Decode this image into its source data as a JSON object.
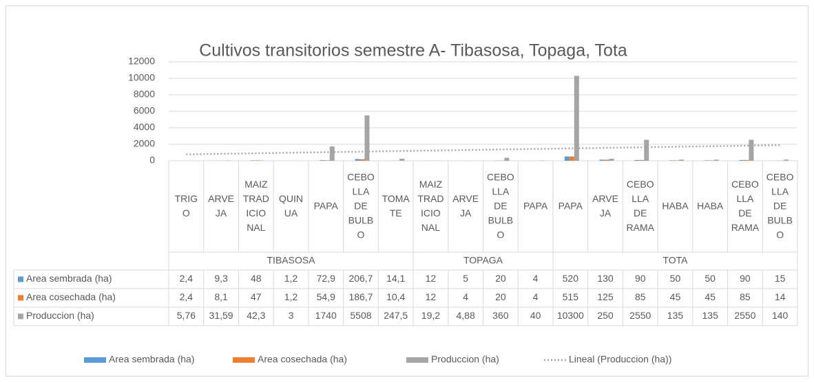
{
  "chart_data": {
    "type": "bar",
    "title": "Cultivos transitorios semestre A- Tibasosa, Topaga, Tota",
    "categories": [
      "TRIGO",
      "ARVEJA",
      "MAIZ TRADICIONAL",
      "QUINUA",
      "PAPA",
      "CEBOLLA DE BULBO",
      "TOMATE",
      "MAIZ TRADICIONAL",
      "ARVEJA",
      "CEBOLLA DE BULBO",
      "PAPA",
      "PAPA",
      "ARVEJA",
      "CEBOLLA DE RAMA",
      "HABA",
      "HABA",
      "CEBOLLA DE RAMA",
      "CEBOLLA DE BULBO"
    ],
    "groups": [
      {
        "name": "TIBASOSA",
        "count": 7
      },
      {
        "name": "TOPAGA",
        "count": 4
      },
      {
        "name": "TOTA",
        "count": 7
      }
    ],
    "series": [
      {
        "name": "Area sembrada (ha)",
        "color": "#5b9bd5",
        "values": [
          2.4,
          9.3,
          48,
          1.2,
          72.9,
          206.7,
          14.1,
          12,
          5,
          20,
          4,
          520,
          130,
          90,
          50,
          50,
          90,
          15
        ],
        "value_labels": [
          "2,4",
          "9,3",
          "48",
          "1,2",
          "72,9",
          "206,7",
          "14,1",
          "12",
          "5",
          "20",
          "4",
          "520",
          "130",
          "90",
          "50",
          "50",
          "90",
          "15"
        ]
      },
      {
        "name": "Area cosechada (ha)",
        "color": "#ed7d31",
        "values": [
          2.4,
          8.1,
          47,
          1.2,
          54.9,
          186.7,
          10.4,
          12,
          4,
          20,
          4,
          515,
          125,
          85,
          45,
          45,
          85,
          14
        ],
        "value_labels": [
          "2,4",
          "8,1",
          "47",
          "1,2",
          "54,9",
          "186,7",
          "10,4",
          "12",
          "4",
          "20",
          "4",
          "515",
          "125",
          "85",
          "45",
          "45",
          "85",
          "14"
        ]
      },
      {
        "name": "Produccion (ha)",
        "color": "#a5a5a5",
        "values": [
          5.76,
          31.59,
          42.3,
          3,
          1740,
          5508,
          247.5,
          19.2,
          4.88,
          360,
          40,
          10300,
          250,
          2550,
          135,
          135,
          2550,
          140
        ],
        "value_labels": [
          "5,76",
          "31,59",
          "42,3",
          "3",
          "1740",
          "5508",
          "247,5",
          "19,2",
          "4,88",
          "360",
          "40",
          "10300",
          "250",
          "2550",
          "135",
          "135",
          "2550",
          "140"
        ]
      }
    ],
    "trendline": {
      "name": "Lineal (Produccion (ha))",
      "series": 2,
      "color": "#a5a5a5"
    },
    "ylim": [
      0,
      12000
    ],
    "yticks": [
      0,
      2000,
      4000,
      6000,
      8000,
      10000,
      12000
    ],
    "grid": true
  }
}
